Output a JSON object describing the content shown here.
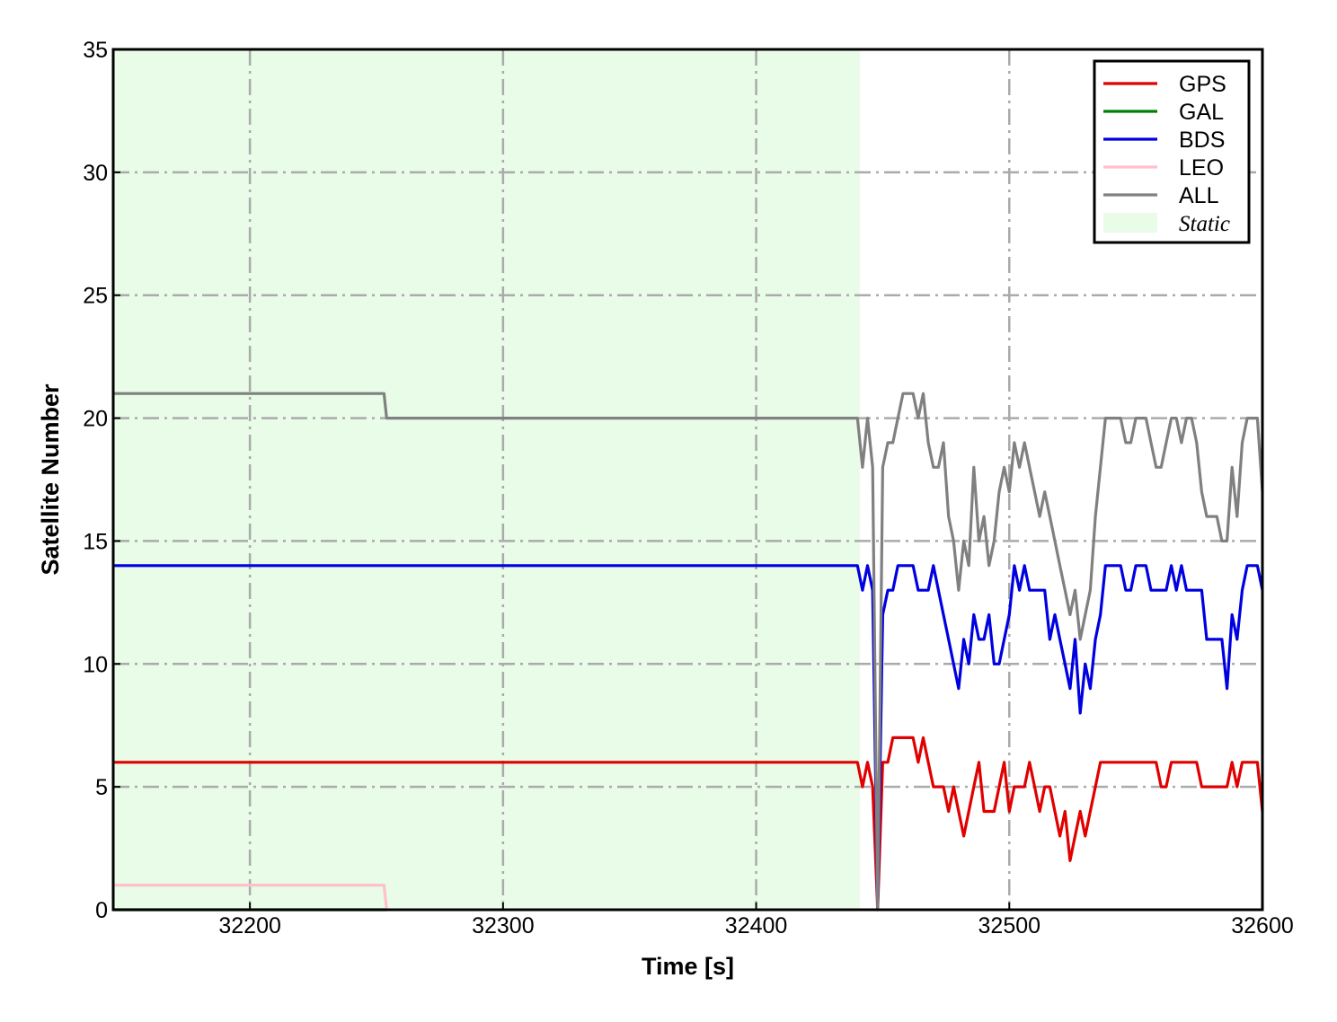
{
  "chart_data": {
    "type": "line",
    "xlabel": "Time [s]",
    "ylabel": "Satellite Number",
    "xlim": [
      32146,
      32600
    ],
    "ylim": [
      0,
      35
    ],
    "xticks": [
      32200,
      32300,
      32400,
      32500,
      32600
    ],
    "yticks": [
      0,
      5,
      10,
      15,
      20,
      25,
      30,
      35
    ],
    "grid": true,
    "legend": "upper right",
    "shade": {
      "label": "Static",
      "xmin": 32146,
      "xmax": 32441,
      "color": "#e8fce8"
    },
    "x": [
      32146,
      32253,
      32254,
      32440,
      32442,
      32444,
      32446,
      32448,
      32450,
      32452,
      32454,
      32456,
      32458,
      32460,
      32462,
      32464,
      32466,
      32468,
      32470,
      32472,
      32474,
      32476,
      32478,
      32480,
      32482,
      32484,
      32486,
      32488,
      32490,
      32492,
      32494,
      32496,
      32498,
      32500,
      32502,
      32504,
      32506,
      32508,
      32510,
      32512,
      32514,
      32516,
      32518,
      32520,
      32522,
      32524,
      32526,
      32528,
      32530,
      32532,
      32534,
      32536,
      32538,
      32540,
      32542,
      32544,
      32546,
      32548,
      32550,
      32552,
      32554,
      32556,
      32558,
      32560,
      32562,
      32564,
      32566,
      32568,
      32570,
      32572,
      32574,
      32576,
      32578,
      32580,
      32582,
      32584,
      32586,
      32588,
      32590,
      32592,
      32594,
      32596,
      32598,
      32600
    ],
    "series": [
      {
        "name": "GPS",
        "color": "#e00000",
        "values": [
          6,
          6,
          6,
          6,
          5,
          6,
          5,
          0,
          6,
          6,
          7,
          7,
          7,
          7,
          7,
          6,
          7,
          6,
          5,
          5,
          5,
          4,
          5,
          4,
          3,
          4,
          5,
          6,
          4,
          4,
          4,
          5,
          6,
          4,
          5,
          5,
          5,
          6,
          5,
          4,
          5,
          5,
          4,
          3,
          4,
          2,
          3,
          4,
          3,
          4,
          5,
          6,
          6,
          6,
          6,
          6,
          6,
          6,
          6,
          6,
          6,
          6,
          6,
          5,
          5,
          6,
          6,
          6,
          6,
          6,
          6,
          5,
          5,
          5,
          5,
          5,
          5,
          6,
          5,
          6,
          6,
          6,
          6,
          4
        ]
      },
      {
        "name": "GAL",
        "color": "#008000",
        "values": [
          0,
          0,
          0,
          null,
          null,
          null,
          null,
          null,
          null,
          null,
          null,
          null,
          null,
          null,
          null,
          null,
          null,
          null,
          null,
          null,
          null,
          null,
          null,
          null,
          null,
          null,
          null,
          null,
          null,
          null,
          null,
          null,
          null,
          null,
          null,
          null,
          null,
          null,
          null,
          null,
          null,
          null,
          null,
          null,
          null,
          null,
          null,
          null,
          null,
          null,
          null,
          null,
          null,
          null,
          null,
          null,
          null,
          null,
          null,
          null,
          null,
          null,
          null,
          null,
          null,
          null,
          null,
          null,
          null,
          null,
          null,
          null,
          null,
          null,
          null,
          null,
          null,
          null,
          null,
          null,
          null,
          null,
          null,
          null
        ]
      },
      {
        "name": "BDS",
        "color": "#0000e0",
        "values": [
          14,
          14,
          14,
          14,
          13,
          14,
          13,
          0,
          12,
          13,
          13,
          14,
          14,
          14,
          14,
          13,
          13,
          13,
          14,
          13,
          12,
          11,
          10,
          9,
          11,
          10,
          12,
          11,
          11,
          12,
          10,
          10,
          11,
          12,
          14,
          13,
          14,
          13,
          13,
          13,
          13,
          11,
          12,
          11,
          10,
          9,
          11,
          8,
          10,
          9,
          11,
          12,
          14,
          14,
          14,
          14,
          13,
          13,
          14,
          14,
          14,
          13,
          13,
          13,
          13,
          14,
          13,
          14,
          13,
          13,
          13,
          13,
          11,
          11,
          11,
          11,
          9,
          12,
          11,
          13,
          14,
          14,
          14,
          13
        ]
      },
      {
        "name": "LEO",
        "color": "#ffc0cb",
        "values": [
          1,
          1,
          0,
          null,
          null,
          null,
          null,
          null,
          null,
          null,
          null,
          null,
          null,
          null,
          null,
          null,
          null,
          null,
          null,
          null,
          null,
          null,
          null,
          null,
          null,
          null,
          null,
          null,
          null,
          null,
          null,
          null,
          null,
          null,
          null,
          null,
          null,
          null,
          null,
          null,
          null,
          null,
          null,
          null,
          null,
          null,
          null,
          null,
          null,
          null,
          null,
          null,
          null,
          null,
          null,
          null,
          null,
          null,
          null,
          null,
          null,
          null,
          null,
          null,
          null,
          null,
          null,
          null,
          null,
          null,
          null,
          null,
          null,
          null,
          null,
          null,
          null,
          null,
          null,
          null,
          null,
          null,
          null,
          null
        ]
      },
      {
        "name": "ALL",
        "color": "#808080",
        "values": [
          21,
          21,
          20,
          20,
          18,
          20,
          18,
          0,
          18,
          19,
          19,
          20,
          21,
          21,
          21,
          20,
          21,
          19,
          18,
          18,
          19,
          16,
          15,
          13,
          15,
          14,
          18,
          15,
          16,
          14,
          15,
          17,
          18,
          17,
          19,
          18,
          19,
          18,
          17,
          16,
          17,
          16,
          15,
          14,
          13,
          12,
          13,
          11,
          12,
          13,
          16,
          18,
          20,
          20,
          20,
          20,
          19,
          19,
          20,
          20,
          20,
          19,
          18,
          18,
          19,
          20,
          20,
          19,
          20,
          20,
          19,
          17,
          16,
          16,
          16,
          15,
          15,
          18,
          16,
          19,
          20,
          20,
          20,
          17
        ]
      }
    ]
  }
}
